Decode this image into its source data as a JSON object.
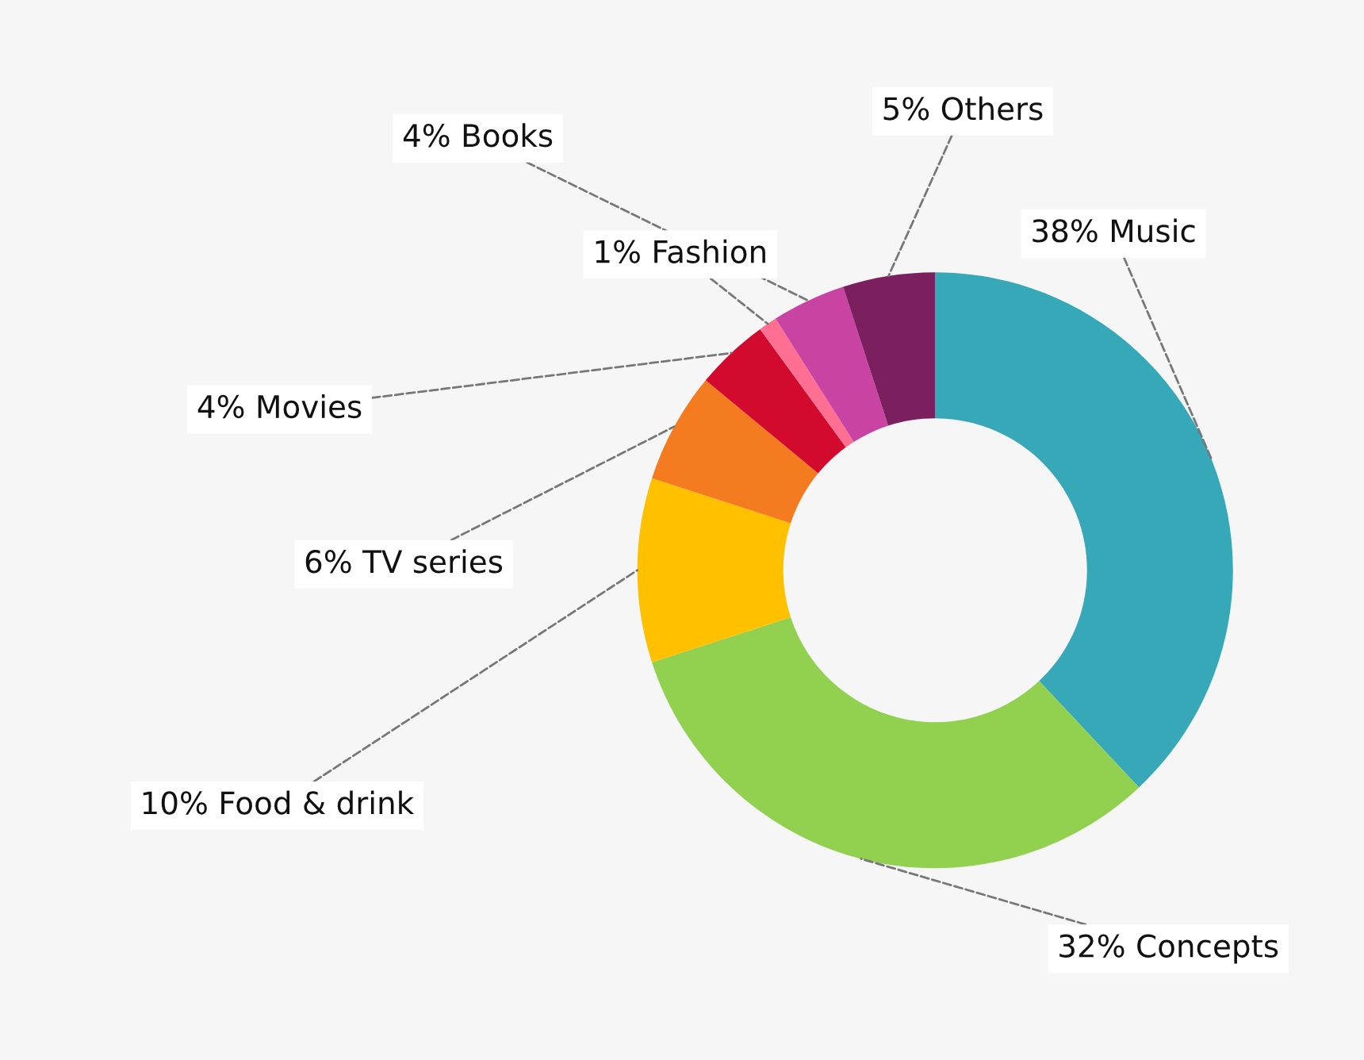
{
  "chart_data": {
    "type": "donut",
    "categories": [
      "Music",
      "Concepts",
      "Food & drink",
      "TV series",
      "Movies",
      "Fashion",
      "Books",
      "Others"
    ],
    "values": [
      38,
      32,
      10,
      6,
      4,
      1,
      4,
      5
    ],
    "value_labels": [
      "38%",
      "32%",
      "10%",
      "6%",
      "4%",
      "1%",
      "4%",
      "5%"
    ],
    "colors": [
      "#37a8b8",
      "#92d050",
      "#ffc000",
      "#f47b20",
      "#d20a2e",
      "#ff6f91",
      "#c944a2",
      "#7b1f5e"
    ],
    "legend": false
  }
}
